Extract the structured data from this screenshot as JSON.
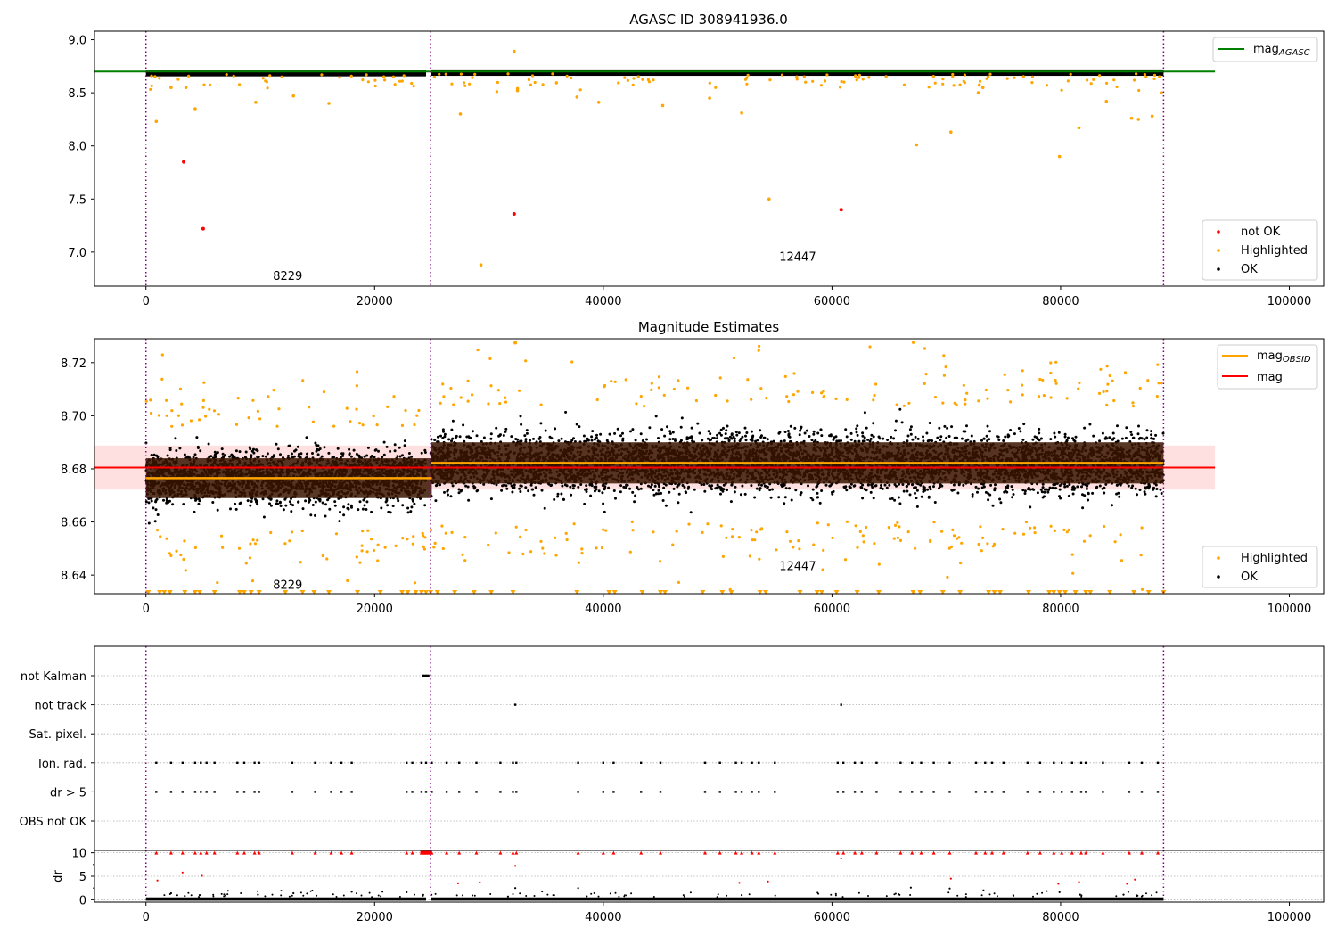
{
  "figure": {
    "background": "#ffffff"
  },
  "colors": {
    "ok": "#000000",
    "highlighted": "#ffa500",
    "not_ok": "#ff0000",
    "agasc_line": "#008000",
    "mag_line": "#ff0000",
    "mag_band": "#ffcccc",
    "obsid_line": "#ffa500",
    "obs_boundary": "#800080",
    "grid": "#b0b0b0"
  },
  "chart_data": [
    {
      "type": "scatter",
      "title": "AGASC ID 308941936.0",
      "xlim": [
        -4500,
        103000
      ],
      "ylim": [
        6.68,
        9.08
      ],
      "xticks": [
        0,
        20000,
        40000,
        60000,
        80000,
        100000
      ],
      "xtick_labels": [
        "0",
        "20000",
        "40000",
        "60000",
        "80000",
        "100000"
      ],
      "yticks": [
        7.0,
        7.5,
        8.0,
        8.5,
        9.0
      ],
      "ytick_labels": [
        "7.0",
        "7.5",
        "8.0",
        "8.5",
        "9.0"
      ],
      "obs_boundaries": [
        0,
        24900,
        89000
      ],
      "obs_labels": [
        {
          "text": "8229",
          "x": 12400,
          "y": 6.78
        },
        {
          "text": "12447",
          "x": 57000,
          "y": 6.96
        }
      ],
      "mag_agasc": {
        "value": 8.7,
        "x": [
          -4500,
          93500
        ],
        "label": "mag$_{AGASC}$",
        "label_text": "mag",
        "label_sub": "AGASC"
      },
      "ok_segments": [
        {
          "x": [
            0,
            24500
          ],
          "y_range": [
            8.655,
            8.71
          ]
        },
        {
          "x": [
            24900,
            89000
          ],
          "y_range": [
            8.66,
            8.72
          ]
        }
      ],
      "not_ok_points": {
        "x": [
          3300,
          5000,
          32200,
          60800
        ],
        "y": [
          7.85,
          7.22,
          7.36,
          7.4
        ]
      },
      "highlighted_points": {
        "x": [
          900,
          2200,
          3500,
          4300,
          9600,
          12900,
          16000,
          29300,
          27500,
          32200,
          32500,
          37700,
          39600,
          45200,
          49300,
          52100,
          54500,
          67400,
          70400,
          72800,
          73200,
          79900,
          81600,
          84000,
          86200,
          86800,
          88000,
          88800,
          32500
        ],
        "y": [
          8.23,
          8.55,
          8.55,
          8.35,
          8.41,
          8.47,
          8.4,
          6.88,
          8.3,
          8.89,
          8.52,
          8.46,
          8.41,
          8.38,
          8.45,
          8.31,
          7.5,
          8.01,
          8.13,
          8.5,
          8.55,
          7.9,
          8.17,
          8.42,
          8.26,
          8.25,
          8.28,
          8.5,
          8.54
        ]
      },
      "legend": {
        "position": "lower right",
        "entries": [
          "not OK",
          "Highlighted",
          "OK"
        ]
      },
      "grid": false
    },
    {
      "type": "scatter",
      "title": "Magnitude Estimates",
      "xlim": [
        -4500,
        103000
      ],
      "ylim": [
        8.633,
        8.729
      ],
      "xticks": [
        0,
        20000,
        40000,
        60000,
        80000,
        100000
      ],
      "xtick_labels": [
        "0",
        "20000",
        "40000",
        "60000",
        "80000",
        "100000"
      ],
      "yticks": [
        8.64,
        8.66,
        8.68,
        8.7,
        8.72
      ],
      "ytick_labels": [
        "8.64",
        "8.66",
        "8.68",
        "8.70",
        "8.72"
      ],
      "obs_boundaries": [
        0,
        24900,
        89000
      ],
      "obs_labels": [
        {
          "text": "8229",
          "x": 12400,
          "y": 8.6365
        },
        {
          "text": "12447",
          "x": 57000,
          "y": 8.6435
        }
      ],
      "mag": {
        "value": 8.6805,
        "band": [
          8.6722,
          8.6888
        ],
        "x": [
          -4500,
          93500
        ],
        "label": "mag"
      },
      "mag_obsid": {
        "label": "mag$_{OBSID}$",
        "label_text": "mag",
        "label_sub": "OBSID",
        "segments": [
          {
            "x": [
              0,
              25000
            ],
            "value": 8.6765,
            "band": [
              8.669,
              8.684
            ]
          },
          {
            "x": [
              24900,
              89000
            ],
            "value": 8.6822,
            "band": [
              8.6745,
              8.69
            ]
          }
        ]
      },
      "ok_segments": [
        {
          "x": [
            0,
            24500
          ],
          "core": 8.6765,
          "spread": 0.0065
        },
        {
          "x": [
            24900,
            89000
          ],
          "core": 8.682,
          "spread": 0.0072
        }
      ],
      "highlighted_clamped_y": 8.6335,
      "highlighted_clamped_x": [
        200,
        1200,
        1600,
        2100,
        3400,
        4300,
        4700,
        6000,
        8200,
        8600,
        9200,
        9900,
        12200,
        13700,
        14700,
        16000,
        18500,
        20500,
        22400,
        22900,
        23600,
        24100,
        24500,
        24900,
        25500,
        27000,
        28700,
        30200,
        32100,
        37700,
        40500,
        41000,
        43400,
        45000,
        45400,
        48700,
        50400,
        51200,
        53700,
        54200,
        57200,
        58700,
        59100,
        60400,
        62200,
        64100,
        67100,
        67700,
        69700,
        71200,
        73700,
        74200,
        74700,
        77200,
        79000,
        79400,
        79900,
        80400,
        81300,
        82200,
        82600,
        84300,
        86400,
        87700,
        89000
      ],
      "legend": {
        "position": "lower right",
        "entries": [
          "Highlighted",
          "OK"
        ]
      },
      "legend_top": {
        "position": "upper right",
        "entries": [
          "mag$_{OBSID}$",
          "mag"
        ]
      },
      "grid": false
    },
    {
      "type": "scatter",
      "title": "",
      "xlim": [
        -4500,
        103000
      ],
      "flag_rows": [
        "not Kalman",
        "not track",
        "Sat. pixel.",
        "Ion. rad.",
        "dr > 5",
        "OBS not OK"
      ],
      "obs_boundaries": [
        0,
        24900,
        89000
      ],
      "flags": {
        "not Kalman": [
          24200,
          24300,
          24400,
          24500,
          24600,
          24700
        ],
        "not track": [
          32300,
          60800
        ],
        "Sat. pixel.": [],
        "Ion. rad.": [
          900,
          2200,
          3200,
          4300,
          4800,
          5300,
          6000,
          8000,
          8600,
          9500,
          9900,
          12800,
          14800,
          16200,
          17100,
          18000,
          22800,
          23300,
          24100,
          24500,
          25000,
          26300,
          27400,
          28900,
          31000,
          32100,
          32400,
          37800,
          40000,
          40900,
          43300,
          45000,
          48900,
          50200,
          51600,
          52100,
          53000,
          53600,
          55000,
          60500,
          61000,
          62000,
          62600,
          63900,
          66000,
          67000,
          67800,
          68900,
          70300,
          72600,
          73400,
          74000,
          75000,
          77100,
          78200,
          79400,
          80100,
          81000,
          81800,
          82200,
          83700,
          86000,
          87100,
          88500
        ],
        "dr > 5": [
          900,
          2200,
          3200,
          4300,
          4800,
          5300,
          6000,
          8000,
          8600,
          9500,
          9900,
          12800,
          14800,
          16200,
          17100,
          18000,
          22800,
          23300,
          24100,
          24500,
          25000,
          26300,
          27400,
          28900,
          31000,
          32100,
          32400,
          37800,
          40000,
          40900,
          43300,
          45000,
          48900,
          50200,
          51600,
          52100,
          53000,
          53600,
          55000,
          60500,
          61000,
          62000,
          62600,
          63900,
          66000,
          67000,
          67800,
          68900,
          70300,
          72600,
          73400,
          74000,
          75000,
          77100,
          78200,
          79400,
          80100,
          81000,
          81800,
          82200,
          83700,
          86000,
          87100,
          88500
        ],
        "OBS not OK": []
      },
      "grid": true
    },
    {
      "type": "scatter",
      "title": "",
      "ylabel": "dr",
      "xlim": [
        -4500,
        103000
      ],
      "ylim": [
        -0.5,
        10.5
      ],
      "xticks": [
        0,
        20000,
        40000,
        60000,
        80000,
        100000
      ],
      "xtick_labels": [
        "0",
        "20000",
        "40000",
        "60000",
        "80000",
        "100000"
      ],
      "yticks": [
        0,
        5,
        10
      ],
      "ytick_labels": [
        "0",
        "5",
        "10"
      ],
      "obs_boundaries": [
        0,
        24900,
        89000
      ],
      "dr_clamped_x": [
        900,
        2200,
        3200,
        4300,
        4800,
        5300,
        6000,
        8000,
        8600,
        9500,
        9900,
        12800,
        14800,
        16200,
        17100,
        18000,
        22800,
        23300,
        24100,
        24300,
        24500,
        24700,
        25000,
        26300,
        27400,
        28900,
        31000,
        32100,
        32400,
        37800,
        40000,
        40900,
        43300,
        45000,
        48900,
        50200,
        51600,
        52100,
        53000,
        53600,
        55000,
        60500,
        61000,
        62000,
        62600,
        63900,
        66000,
        67000,
        67800,
        68900,
        70300,
        72600,
        73400,
        74000,
        75000,
        77100,
        78200,
        79400,
        80100,
        81000,
        81800,
        82200,
        83700,
        86000,
        87100,
        88500
      ],
      "dr_red_points": {
        "x": [
          1000,
          3200,
          4900,
          27300,
          29200,
          32300,
          51900,
          54400,
          60800,
          70400,
          79800,
          81600,
          85800,
          86500
        ],
        "y": [
          4.1,
          5.8,
          5.1,
          3.5,
          3.7,
          7.2,
          3.6,
          3.9,
          8.8,
          4.5,
          3.4,
          3.8,
          3.4,
          4.3
        ]
      },
      "dr_black_points": {
        "x": [
          2200,
          3400,
          4700,
          9800,
          12900,
          18000,
          22800,
          32300,
          37800,
          52100,
          66900,
          70300,
          79900,
          81700,
          85500
        ],
        "y": [
          1.4,
          0.8,
          1.0,
          1.1,
          1.4,
          1.7,
          1.6,
          2.5,
          2.5,
          1.0,
          2.6,
          2.4,
          1.6,
          1.1,
          1.1
        ]
      },
      "grid": true
    }
  ]
}
